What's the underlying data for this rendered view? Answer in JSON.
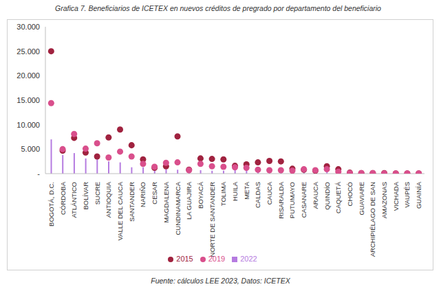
{
  "chart_data": {
    "type": "bar",
    "title": "Grafica 7. Beneficiarios de ICETEX en nuevos créditos de pregrado por departamento del beneficiario",
    "source": "Fuente: cálculos LEE 2023, Datos: ICETEX",
    "categories": [
      "BOGOTÁ, D.C.",
      "CÓRDOBA",
      "ATLÁNTICO",
      "BOLÍVAR",
      "SUCRE",
      "ANTIOQUIA",
      "VALLE DEL CAUCA",
      "SANTANDER",
      "NARIÑO",
      "CESAR",
      "MAGDALENA",
      "CUNDINAMARCA",
      "LA GUAJIRA",
      "BOYACÁ",
      "NORTE DE SANTANDER",
      "TOLIMA",
      "HUILA",
      "META",
      "CALDAS",
      "CAUCA",
      "RISARALDA",
      "PUTUMAYO",
      "CASANARE",
      "ARAUCA",
      "QUINDÍO",
      "CAQUETÁ",
      "CHOCÓ",
      "GUAVIARE",
      "ARCHIPIÉLAGO DE SAN",
      "AMAZONAS",
      "VICHADA",
      "VAUPÉS",
      "GUAINÍA"
    ],
    "series": [
      {
        "name": "2022",
        "type": "bar",
        "color": "#b57be0",
        "values": [
          7000,
          3800,
          4200,
          3100,
          3000,
          2500,
          2300,
          1300,
          1300,
          1000,
          900,
          800,
          500,
          700,
          600,
          600,
          800,
          700,
          600,
          500,
          400,
          400,
          500,
          400,
          300,
          300,
          100,
          100,
          100,
          50,
          50,
          30,
          30
        ]
      },
      {
        "name": "2015",
        "type": "scatter",
        "marker": "circle",
        "color": "#a0223f",
        "values": [
          25000,
          4700,
          7300,
          4300,
          3500,
          7400,
          9000,
          5800,
          2900,
          1200,
          1500,
          7600,
          800,
          3100,
          3000,
          2900,
          1600,
          1900,
          2300,
          2600,
          2500,
          1000,
          800,
          600,
          1500,
          900,
          200,
          100,
          100,
          100,
          50,
          50,
          50
        ]
      },
      {
        "name": "2019",
        "type": "scatter",
        "marker": "circle",
        "color": "#d94f8c",
        "values": [
          14400,
          5000,
          8100,
          5100,
          6200,
          3300,
          4500,
          3500,
          2000,
          1400,
          2200,
          2300,
          700,
          2000,
          1500,
          1400,
          1300,
          1200,
          800,
          700,
          700,
          600,
          900,
          700,
          900,
          400,
          100,
          100,
          100,
          50,
          50,
          50,
          50
        ]
      }
    ],
    "ylim": [
      0,
      30000
    ],
    "yticks": [
      {
        "value": 0,
        "label": "-"
      },
      {
        "value": 5000,
        "label": "5.000"
      },
      {
        "value": 10000,
        "label": "10.000"
      },
      {
        "value": 15000,
        "label": "15.000"
      },
      {
        "value": 20000,
        "label": "20.000"
      },
      {
        "value": 25000,
        "label": "25.000"
      },
      {
        "value": 30000,
        "label": "30.000"
      }
    ],
    "grid": false,
    "legend": "bottom"
  }
}
